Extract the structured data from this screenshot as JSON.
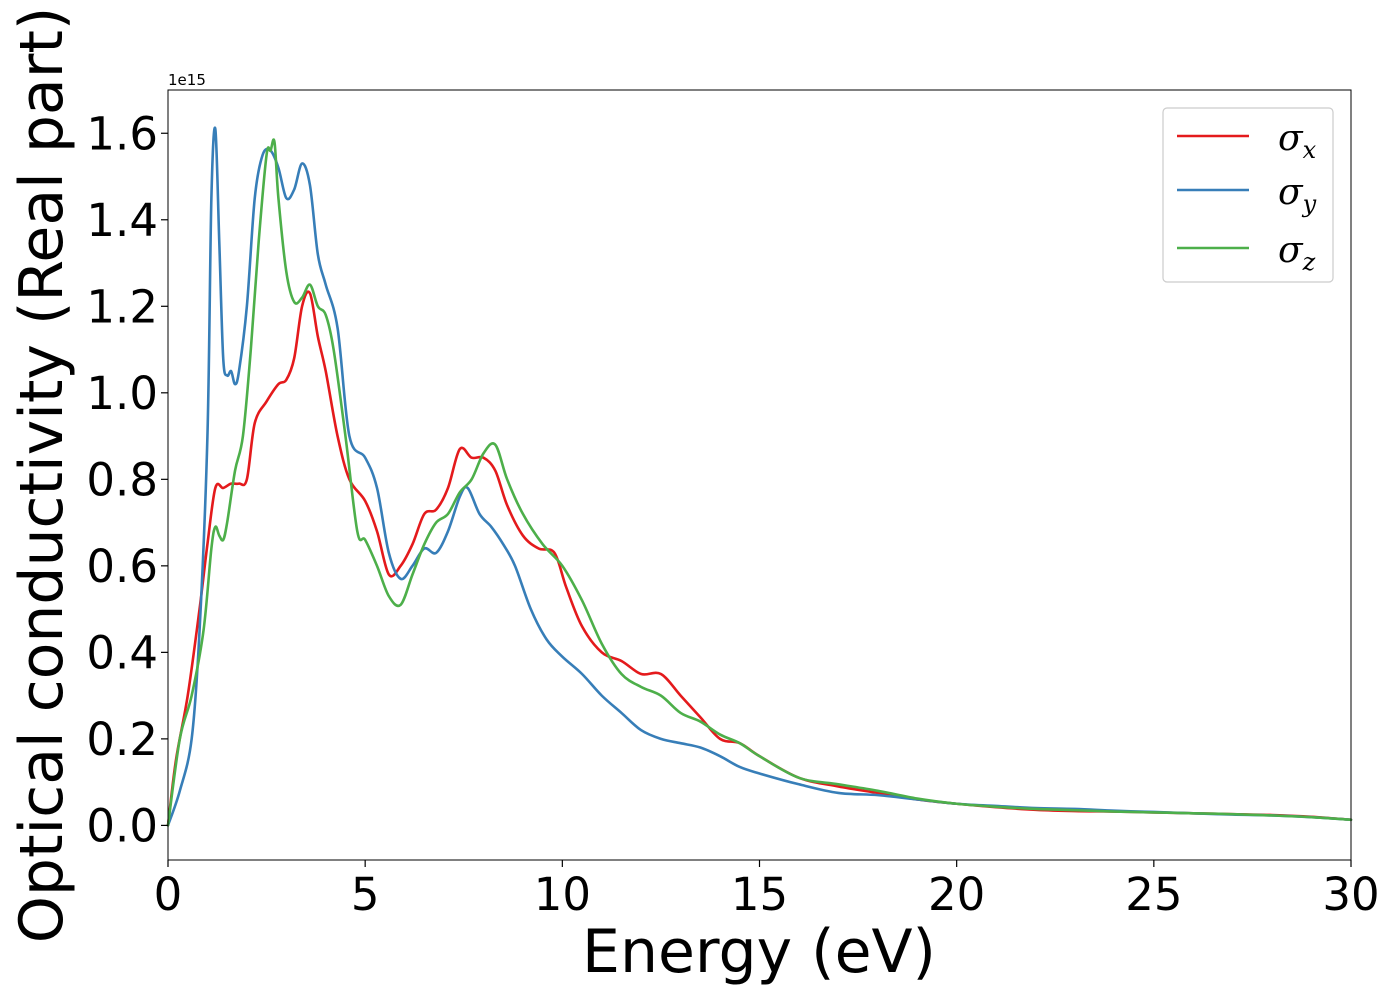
{
  "chart_data": {
    "type": "line",
    "title": "",
    "xlabel": "Energy (eV)",
    "ylabel": "Optical conductivity (Real part)",
    "y_offset_label": "1e15",
    "xlim": [
      0,
      30
    ],
    "ylim": [
      -0.08,
      1.7
    ],
    "x_ticks": [
      0,
      5,
      10,
      15,
      20,
      25,
      30
    ],
    "x_tick_labels": [
      "0",
      "5",
      "10",
      "15",
      "20",
      "25",
      "30"
    ],
    "y_ticks": [
      0.0,
      0.2,
      0.4,
      0.6,
      0.8,
      1.0,
      1.2,
      1.4,
      1.6
    ],
    "y_tick_labels": [
      "0.0",
      "0.2",
      "0.4",
      "0.6",
      "0.8",
      "1.0",
      "1.2",
      "1.4",
      "1.6"
    ],
    "grid": false,
    "legend_position": "top-right",
    "series": [
      {
        "name": "σ_x",
        "symbol": "σ",
        "subscript": "x",
        "color": "#e41a1c",
        "x": [
          0,
          0.2,
          0.5,
          0.8,
          1.0,
          1.2,
          1.4,
          1.6,
          1.8,
          2.0,
          2.2,
          2.5,
          2.8,
          3.0,
          3.2,
          3.4,
          3.6,
          3.8,
          4.0,
          4.3,
          4.6,
          5.0,
          5.3,
          5.6,
          5.9,
          6.2,
          6.5,
          6.8,
          7.1,
          7.4,
          7.7,
          8.0,
          8.3,
          8.6,
          9.0,
          9.4,
          9.8,
          10.1,
          10.5,
          11.0,
          11.5,
          12.0,
          12.5,
          13.0,
          13.5,
          14.0,
          14.5,
          15.0,
          16.0,
          17.0,
          18.0,
          19.0,
          20.0,
          21.0,
          22.0,
          23.0,
          24.0,
          25.0,
          26.0,
          27.0,
          28.0,
          29.0,
          30.0
        ],
        "values": [
          0.0,
          0.15,
          0.3,
          0.5,
          0.65,
          0.78,
          0.78,
          0.79,
          0.79,
          0.8,
          0.93,
          0.98,
          1.02,
          1.03,
          1.08,
          1.2,
          1.23,
          1.13,
          1.05,
          0.9,
          0.8,
          0.75,
          0.68,
          0.58,
          0.6,
          0.65,
          0.72,
          0.73,
          0.78,
          0.87,
          0.85,
          0.85,
          0.82,
          0.74,
          0.67,
          0.64,
          0.63,
          0.55,
          0.46,
          0.4,
          0.38,
          0.35,
          0.35,
          0.3,
          0.25,
          0.2,
          0.19,
          0.16,
          0.11,
          0.09,
          0.075,
          0.06,
          0.05,
          0.042,
          0.036,
          0.033,
          0.032,
          0.03,
          0.028,
          0.026,
          0.024,
          0.02,
          0.013
        ]
      },
      {
        "name": "σ_y",
        "symbol": "σ",
        "subscript": "y",
        "color": "#377eb8",
        "x": [
          0,
          0.3,
          0.6,
          0.8,
          1.0,
          1.1,
          1.2,
          1.3,
          1.4,
          1.5,
          1.6,
          1.7,
          1.8,
          2.0,
          2.2,
          2.4,
          2.6,
          2.8,
          3.0,
          3.2,
          3.4,
          3.6,
          3.8,
          4.0,
          4.3,
          4.6,
          5.0,
          5.3,
          5.6,
          5.9,
          6.2,
          6.5,
          6.8,
          7.1,
          7.4,
          7.6,
          7.9,
          8.2,
          8.5,
          8.8,
          9.2,
          9.6,
          10.0,
          10.5,
          11.0,
          11.5,
          12.0,
          12.5,
          13.0,
          13.5,
          14.0,
          14.5,
          15.0,
          16.0,
          17.0,
          18.0,
          19.0,
          20.0,
          21.0,
          22.0,
          23.0,
          24.0,
          25.0,
          26.0,
          27.0,
          28.0,
          29.0,
          30.0
        ],
        "values": [
          0.0,
          0.08,
          0.2,
          0.45,
          0.9,
          1.45,
          1.61,
          1.35,
          1.08,
          1.04,
          1.05,
          1.02,
          1.05,
          1.2,
          1.45,
          1.55,
          1.56,
          1.52,
          1.45,
          1.47,
          1.53,
          1.48,
          1.32,
          1.25,
          1.15,
          0.9,
          0.85,
          0.78,
          0.63,
          0.57,
          0.6,
          0.64,
          0.63,
          0.68,
          0.76,
          0.78,
          0.72,
          0.69,
          0.65,
          0.6,
          0.5,
          0.43,
          0.39,
          0.35,
          0.3,
          0.26,
          0.22,
          0.2,
          0.19,
          0.18,
          0.16,
          0.135,
          0.12,
          0.095,
          0.075,
          0.07,
          0.06,
          0.05,
          0.045,
          0.04,
          0.038,
          0.034,
          0.031,
          0.028,
          0.025,
          0.023,
          0.019,
          0.013
        ]
      },
      {
        "name": "σ_z",
        "symbol": "σ",
        "subscript": "z",
        "color": "#4daf4a",
        "x": [
          0,
          0.3,
          0.6,
          0.9,
          1.1,
          1.2,
          1.3,
          1.4,
          1.5,
          1.7,
          1.9,
          2.1,
          2.3,
          2.5,
          2.6,
          2.7,
          2.8,
          3.0,
          3.2,
          3.4,
          3.6,
          3.8,
          4.0,
          4.2,
          4.5,
          4.8,
          5.0,
          5.3,
          5.6,
          5.9,
          6.2,
          6.5,
          6.8,
          7.1,
          7.4,
          7.7,
          8.0,
          8.3,
          8.6,
          9.0,
          9.5,
          10.0,
          10.5,
          11.0,
          11.5,
          12.0,
          12.5,
          13.0,
          13.5,
          14.0,
          14.5,
          15.0,
          16.0,
          17.0,
          18.0,
          19.0,
          20.0,
          21.0,
          22.0,
          23.0,
          24.0,
          25.0,
          26.0,
          27.0,
          28.0,
          29.0,
          30.0
        ],
        "values": [
          0.0,
          0.2,
          0.3,
          0.45,
          0.64,
          0.69,
          0.67,
          0.66,
          0.7,
          0.82,
          0.9,
          1.1,
          1.35,
          1.55,
          1.56,
          1.58,
          1.45,
          1.28,
          1.21,
          1.22,
          1.25,
          1.2,
          1.18,
          1.1,
          0.9,
          0.68,
          0.66,
          0.6,
          0.53,
          0.51,
          0.58,
          0.65,
          0.7,
          0.72,
          0.77,
          0.8,
          0.86,
          0.88,
          0.8,
          0.72,
          0.65,
          0.6,
          0.52,
          0.42,
          0.35,
          0.32,
          0.3,
          0.26,
          0.24,
          0.21,
          0.19,
          0.16,
          0.11,
          0.095,
          0.08,
          0.062,
          0.05,
          0.043,
          0.038,
          0.035,
          0.032,
          0.03,
          0.028,
          0.026,
          0.023,
          0.019,
          0.013
        ]
      }
    ]
  }
}
